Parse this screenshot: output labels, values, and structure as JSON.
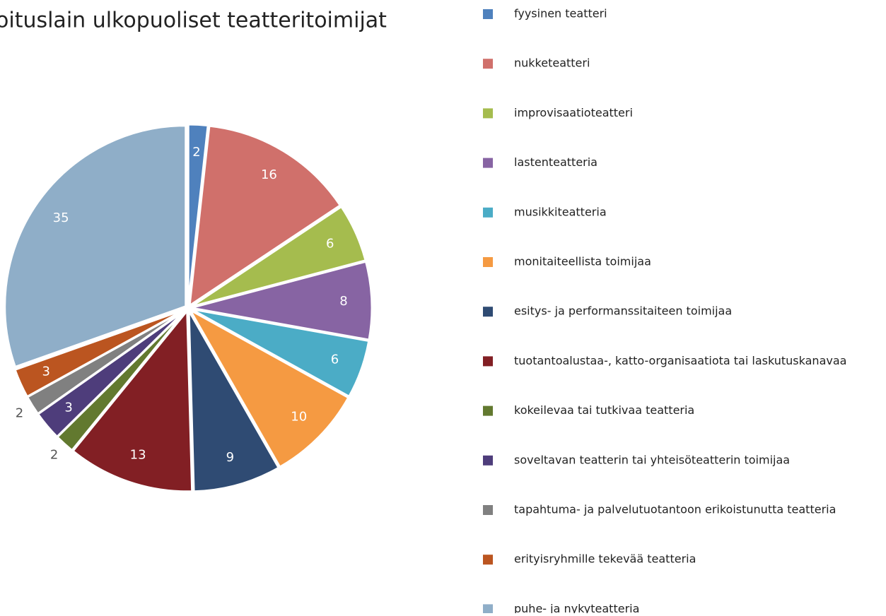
{
  "chart_data": {
    "type": "pie",
    "title": "oituslain ulkopuoliset teatteritoimijat",
    "categories": [
      "fyysinen teatteri",
      "nukketeatteri",
      "improvisaatioteatteri",
      "lastenteatteria",
      "musikkiteatteria",
      "monitaiteellista toimijaa",
      "esitys- ja performanssitaiteen toimijaa",
      "tuotantoalustaa-, katto-organisaatiota tai laskutuskanavaa",
      "kokeilevaa tai tutkivaa teatteria",
      "soveltavan teatterin tai yhteisöteatterin toimijaa",
      "tapahtuma- ja palvelutuotantoon erikoistunutta teatteria",
      "erityisryhmille tekevää teatteria",
      "puhe- ja nykyteatteria"
    ],
    "values": [
      2,
      16,
      6,
      8,
      6,
      10,
      9,
      13,
      2,
      3,
      2,
      3,
      35
    ],
    "colors": [
      "#4f81bd",
      "#d0706b",
      "#a5bc4e",
      "#8764a3",
      "#4bacc6",
      "#f59a42",
      "#2f4b73",
      "#821f24",
      "#62792f",
      "#4e3d7b",
      "#808080",
      "#bb5520",
      "#8faec8"
    ],
    "legend": "right"
  }
}
